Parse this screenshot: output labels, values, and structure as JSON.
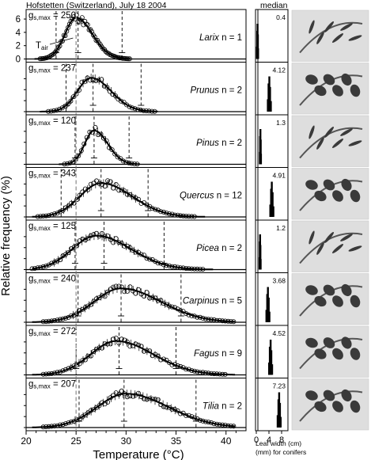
{
  "chart_data": [
    {
      "type": "scatter",
      "title": "Hofstetten (Switzerland), July 18 2004",
      "xlabel": "Temperature (°C)",
      "ylabel": "Relative frequency (%)",
      "xlim": [
        20,
        42
      ],
      "xticks": [
        "20",
        "25",
        "30",
        "35",
        "40"
      ],
      "y_ticks_top_panel": [
        "0",
        "2",
        "4",
        "6"
      ],
      "annotation": "T",
      "annotation_sub": "air",
      "panels": [
        {
          "species": "Larix",
          "n_label": "n = 1",
          "gs_label": "g",
          "gs_sub": "s,max",
          "gs_value": "= 250",
          "median": "0.4",
          "peak": 25.0,
          "sd": 1.3,
          "max_pct": 6.2,
          "p5": 23.0,
          "p50": 25.2,
          "p95": 29.6,
          "lw_median": 0.4
        },
        {
          "species": "Prunus",
          "n_label": "n = 2",
          "gs_label": "g",
          "gs_sub": "s,max",
          "gs_value": "= 237",
          "median": "4.12",
          "peak": 26.5,
          "sd": 1.6,
          "max_pct": 4.0,
          "p5": 24.0,
          "p50": 26.7,
          "p95": 31.5,
          "lw_median": 4.12
        },
        {
          "species": "Pinus",
          "n_label": "n = 2",
          "gs_label": "g",
          "gs_sub": "s,max",
          "gs_value": "= 120",
          "median": "1.3",
          "peak": 26.8,
          "sd": 1.1,
          "max_pct": 5.5,
          "p5": 24.9,
          "p50": 26.8,
          "p95": 30.3,
          "lw_median": 1.3
        },
        {
          "species": "Quercus",
          "n_label": "n = 12",
          "gs_label": "g",
          "gs_sub": "s,max",
          "gs_value": "= 343",
          "median": "4.91",
          "peak": 27.5,
          "sd": 2.5,
          "max_pct": 1.8,
          "p5": 23.5,
          "p50": 27.5,
          "p95": 32.2,
          "lw_median": 4.91
        },
        {
          "species": "Picea",
          "n_label": "n = 2",
          "gs_label": "g",
          "gs_sub": "s,max",
          "gs_value": "= 125",
          "median": "1.2",
          "peak": 27.0,
          "sd": 2.8,
          "max_pct": 2.4,
          "p5": 24.9,
          "p50": 27.8,
          "p95": 33.8,
          "lw_median": 1.2
        },
        {
          "species": "Carpinus",
          "n_label": "n = 5",
          "gs_label": "g",
          "gs_sub": "s,max",
          "gs_value": "= 240",
          "median": "3.68",
          "peak": 29.5,
          "sd": 3.2,
          "max_pct": 1.4,
          "p5": 25.2,
          "p50": 29.5,
          "p95": 35.5,
          "lw_median": 3.68
        },
        {
          "species": "Fagus",
          "n_label": "n = 9",
          "gs_label": "g",
          "gs_sub": "s,max",
          "gs_value": "= 272",
          "median": "4.52",
          "peak": 29.0,
          "sd": 3.0,
          "max_pct": 1.6,
          "p5": 25.0,
          "p50": 29.3,
          "p95": 35.0,
          "lw_median": 4.52
        },
        {
          "species": "Tilia",
          "n_label": "n = 2",
          "gs_label": "g",
          "gs_sub": "s,max",
          "gs_value": "= 207",
          "median": "7.23",
          "peak": 30.0,
          "sd": 3.4,
          "max_pct": 1.3,
          "p5": 25.3,
          "p50": 29.8,
          "p95": 37.0,
          "lw_median": 7.23
        }
      ]
    },
    {
      "type": "bar",
      "title": "median",
      "xlabel": "Leaf width (cm)",
      "xlabel_2": "(mm) for conifers",
      "xlim": [
        0,
        10
      ],
      "xticks": [
        "0",
        "4",
        "8"
      ]
    }
  ],
  "colors": {
    "ink": "#000000",
    "background": "#ffffff",
    "grey_dash": "#9a9a9a",
    "photo_bg": "#dedede"
  }
}
